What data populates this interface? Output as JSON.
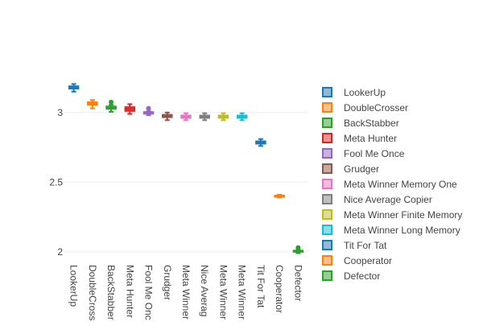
{
  "chart_data": {
    "type": "box",
    "title": "",
    "xlabel": "",
    "ylabel": "",
    "ylim": [
      1.97,
      3.23
    ],
    "yticks": [
      "2",
      "2.5",
      "3"
    ],
    "grid": true,
    "legend_position": "right",
    "categories": [
      "LookerUp",
      "DoubleCrosser",
      "BackStabber",
      "Meta Hunter",
      "Fool Me Once",
      "Grudger",
      "Meta Winner Memory One",
      "Nice Average Copier",
      "Meta Winner Finite Memory",
      "Meta Winner Long Memory",
      "Tit For Tat",
      "Cooperator",
      "Defector"
    ],
    "series": [
      {
        "name": "LookerUp",
        "color": "#1f77b4",
        "median": 3.18,
        "q1": 3.17,
        "q3": 3.19,
        "whisker_low": 3.15,
        "whisker_high": 3.205,
        "outliers": []
      },
      {
        "name": "DoubleCrosser",
        "color": "#ff7f0e",
        "median": 3.065,
        "q1": 3.055,
        "q3": 3.075,
        "whisker_low": 3.03,
        "whisker_high": 3.09,
        "outliers": []
      },
      {
        "name": "BackStabber",
        "color": "#2ca02c",
        "median": 3.035,
        "q1": 3.025,
        "q3": 3.045,
        "whisker_low": 3.005,
        "whisker_high": 3.055,
        "outliers": [
          3.075
        ]
      },
      {
        "name": "Meta Hunter",
        "color": "#d62728",
        "median": 3.025,
        "q1": 3.01,
        "q3": 3.04,
        "whisker_low": 2.99,
        "whisker_high": 3.06,
        "outliers": []
      },
      {
        "name": "Fool Me Once",
        "color": "#9467bd",
        "median": 3.0,
        "q1": 2.99,
        "q3": 3.005,
        "whisker_low": 2.98,
        "whisker_high": 3.01,
        "outliers": [
          3.03
        ]
      },
      {
        "name": "Grudger",
        "color": "#8c564b",
        "median": 2.975,
        "q1": 2.965,
        "q3": 2.985,
        "whisker_low": 2.945,
        "whisker_high": 3.0,
        "outliers": []
      },
      {
        "name": "Meta Winner Memory One",
        "color": "#e377c2",
        "median": 2.97,
        "q1": 2.96,
        "q3": 2.98,
        "whisker_low": 2.945,
        "whisker_high": 2.995,
        "outliers": []
      },
      {
        "name": "Nice Average Copier",
        "color": "#7f7f7f",
        "median": 2.97,
        "q1": 2.96,
        "q3": 2.98,
        "whisker_low": 2.945,
        "whisker_high": 2.995,
        "outliers": []
      },
      {
        "name": "Meta Winner Finite Memory",
        "color": "#bcbd22",
        "median": 2.97,
        "q1": 2.96,
        "q3": 2.98,
        "whisker_low": 2.945,
        "whisker_high": 2.995,
        "outliers": []
      },
      {
        "name": "Meta Winner Long Memory",
        "color": "#17becf",
        "median": 2.97,
        "q1": 2.96,
        "q3": 2.98,
        "whisker_low": 2.945,
        "whisker_high": 2.995,
        "outliers": []
      },
      {
        "name": "Tit For Tat",
        "color": "#1f77b4",
        "median": 2.785,
        "q1": 2.775,
        "q3": 2.795,
        "whisker_low": 2.76,
        "whisker_high": 2.81,
        "outliers": []
      },
      {
        "name": "Cooperator",
        "color": "#ff7f0e",
        "median": 2.4,
        "q1": 2.395,
        "q3": 2.405,
        "whisker_low": 2.39,
        "whisker_high": 2.41,
        "outliers": []
      },
      {
        "name": "Defector",
        "color": "#2ca02c",
        "median": 2.005,
        "q1": 2.0,
        "q3": 2.01,
        "whisker_low": 1.99,
        "whisker_high": 2.015,
        "outliers": [
          2.03
        ]
      }
    ]
  }
}
